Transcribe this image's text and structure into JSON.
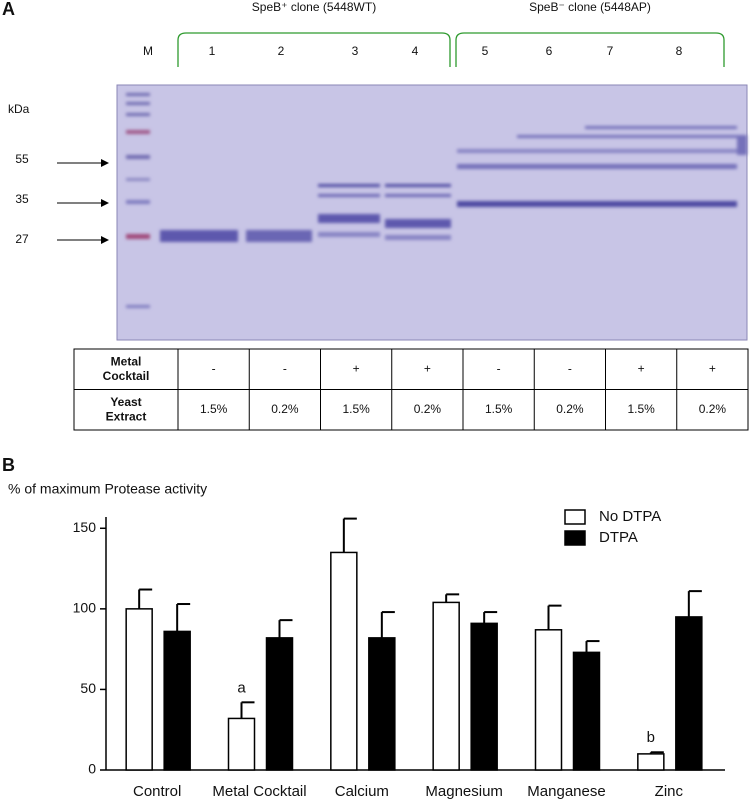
{
  "panel_a": {
    "label": "A",
    "group_labels": [
      "SpeB⁺ clone (5448WT)",
      "SpeB⁻ clone (5448AP)"
    ],
    "lanes": [
      "M",
      "1",
      "2",
      "3",
      "4",
      "5",
      "6",
      "7",
      "8"
    ],
    "unit": "kDa",
    "markers": [
      "55",
      "35",
      "27"
    ],
    "table": {
      "rows": [
        [
          "Metal Cocktail",
          "-",
          "-",
          "+",
          "+",
          "-",
          "-",
          "+",
          "+"
        ],
        [
          "Yeast Extract",
          "1.5%",
          "0.2%",
          "1.5%",
          "0.2%",
          "1.5%",
          "0.2%",
          "1.5%",
          "0.2%"
        ]
      ]
    }
  },
  "chart_data": {
    "type": "bar",
    "panel_label": "B",
    "y_label": "% of maximum Protease activity",
    "categories": [
      "Control",
      "Metal Cocktail",
      "Calcium",
      "Magnesium",
      "Manganese",
      "Zinc"
    ],
    "series": [
      {
        "name": "No DTPA",
        "color": "#ffffff",
        "values": [
          100,
          32,
          135,
          104,
          87,
          10
        ],
        "errors": [
          12,
          10,
          21,
          5,
          15,
          1
        ],
        "annotations": [
          null,
          "a",
          null,
          null,
          null,
          "b"
        ]
      },
      {
        "name": "DTPA",
        "color": "#000000",
        "values": [
          86,
          82,
          82,
          91,
          73,
          95
        ],
        "errors": [
          17,
          11,
          16,
          7,
          7,
          16
        ]
      }
    ],
    "ylim": [
      0,
      157
    ],
    "yticks": [
      0,
      50,
      100,
      150
    ],
    "legend": "top-right",
    "grid": false
  }
}
